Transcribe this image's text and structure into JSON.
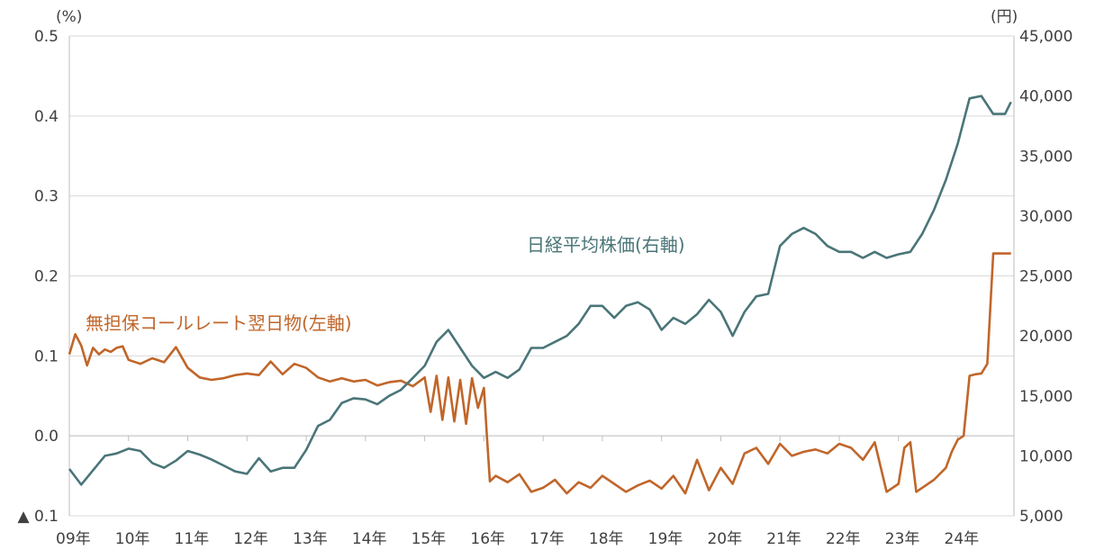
{
  "chart_data": {
    "type": "line",
    "left_axis": {
      "unit": "(%)",
      "ticks": [
        {
          "value": 0.5,
          "label": "0.5"
        },
        {
          "value": 0.4,
          "label": "0.4"
        },
        {
          "value": 0.3,
          "label": "0.3"
        },
        {
          "value": 0.2,
          "label": "0.2"
        },
        {
          "value": 0.1,
          "label": "0.1"
        },
        {
          "value": 0.0,
          "label": "0.0"
        },
        {
          "value": -0.1,
          "label": "▲ 0.1"
        }
      ],
      "ylim": [
        -0.1,
        0.5
      ]
    },
    "right_axis": {
      "unit": "(円)",
      "ticks": [
        {
          "value": 45000,
          "label": "45,000"
        },
        {
          "value": 40000,
          "label": "40,000"
        },
        {
          "value": 35000,
          "label": "35,000"
        },
        {
          "value": 30000,
          "label": "30,000"
        },
        {
          "value": 25000,
          "label": "25,000"
        },
        {
          "value": 20000,
          "label": "20,000"
        },
        {
          "value": 15000,
          "label": "15,000"
        },
        {
          "value": 10000,
          "label": "10,000"
        },
        {
          "value": 5000,
          "label": "5,000"
        }
      ],
      "ylim": [
        5000,
        45000
      ]
    },
    "x_ticks": [
      "09年",
      "10年",
      "11年",
      "12年",
      "13年",
      "14年",
      "15年",
      "16年",
      "17年",
      "18年",
      "19年",
      "20年",
      "21年",
      "22年",
      "23年",
      "24年"
    ],
    "grid": true,
    "series": [
      {
        "name": "無担保コールレート翌日物(左軸)",
        "axis": "left",
        "color": "#C0662A",
        "x": [
          2009.0,
          2009.1,
          2009.2,
          2009.3,
          2009.4,
          2009.5,
          2009.6,
          2009.7,
          2009.8,
          2009.9,
          2010.0,
          2010.2,
          2010.4,
          2010.6,
          2010.8,
          2011.0,
          2011.2,
          2011.4,
          2011.6,
          2011.8,
          2012.0,
          2012.2,
          2012.4,
          2012.6,
          2012.8,
          2013.0,
          2013.2,
          2013.4,
          2013.6,
          2013.8,
          2014.0,
          2014.2,
          2014.4,
          2014.6,
          2014.8,
          2015.0,
          2015.1,
          2015.2,
          2015.3,
          2015.4,
          2015.5,
          2015.6,
          2015.7,
          2015.8,
          2015.9,
          2016.0,
          2016.05,
          2016.1,
          2016.2,
          2016.4,
          2016.6,
          2016.8,
          2017.0,
          2017.2,
          2017.4,
          2017.6,
          2017.8,
          2018.0,
          2018.2,
          2018.4,
          2018.6,
          2018.8,
          2019.0,
          2019.2,
          2019.4,
          2019.6,
          2019.8,
          2020.0,
          2020.2,
          2020.4,
          2020.6,
          2020.8,
          2021.0,
          2021.2,
          2021.4,
          2021.6,
          2021.8,
          2022.0,
          2022.2,
          2022.4,
          2022.6,
          2022.8,
          2023.0,
          2023.1,
          2023.2,
          2023.3,
          2023.4,
          2023.6,
          2023.8,
          2023.9,
          2024.0,
          2024.1,
          2024.2,
          2024.3,
          2024.4,
          2024.5,
          2024.6,
          2024.7,
          2024.8,
          2024.9
        ],
        "values": [
          0.102,
          0.127,
          0.113,
          0.088,
          0.11,
          0.102,
          0.108,
          0.105,
          0.11,
          0.112,
          0.095,
          0.09,
          0.097,
          0.092,
          0.111,
          0.085,
          0.073,
          0.07,
          0.072,
          0.076,
          0.078,
          0.076,
          0.093,
          0.077,
          0.09,
          0.085,
          0.073,
          0.068,
          0.072,
          0.068,
          0.07,
          0.063,
          0.067,
          0.069,
          0.062,
          0.073,
          0.03,
          0.075,
          0.02,
          0.073,
          0.018,
          0.07,
          0.015,
          0.072,
          0.035,
          0.06,
          0.0,
          -0.057,
          -0.05,
          -0.058,
          -0.048,
          -0.07,
          -0.065,
          -0.055,
          -0.072,
          -0.058,
          -0.065,
          -0.05,
          -0.06,
          -0.07,
          -0.062,
          -0.056,
          -0.066,
          -0.05,
          -0.072,
          -0.03,
          -0.068,
          -0.04,
          -0.06,
          -0.022,
          -0.015,
          -0.035,
          -0.01,
          -0.025,
          -0.02,
          -0.017,
          -0.022,
          -0.01,
          -0.015,
          -0.03,
          -0.008,
          -0.07,
          -0.06,
          -0.015,
          -0.008,
          -0.07,
          -0.065,
          -0.055,
          -0.04,
          -0.02,
          -0.005,
          0.0,
          0.075,
          0.077,
          0.078,
          0.09,
          0.228,
          0.228,
          0.228,
          0.228
        ]
      },
      {
        "name": "日経平均株価(右軸)",
        "axis": "right",
        "color": "#4A7578",
        "x": [
          2009.0,
          2009.2,
          2009.4,
          2009.6,
          2009.8,
          2010.0,
          2010.2,
          2010.4,
          2010.6,
          2010.8,
          2011.0,
          2011.2,
          2011.4,
          2011.6,
          2011.8,
          2012.0,
          2012.2,
          2012.4,
          2012.6,
          2012.8,
          2013.0,
          2013.2,
          2013.4,
          2013.6,
          2013.8,
          2014.0,
          2014.2,
          2014.4,
          2014.6,
          2014.8,
          2015.0,
          2015.2,
          2015.4,
          2015.6,
          2015.8,
          2016.0,
          2016.2,
          2016.4,
          2016.6,
          2016.8,
          2017.0,
          2017.2,
          2017.4,
          2017.6,
          2017.8,
          2018.0,
          2018.2,
          2018.4,
          2018.6,
          2018.8,
          2019.0,
          2019.2,
          2019.4,
          2019.6,
          2019.8,
          2020.0,
          2020.2,
          2020.4,
          2020.6,
          2020.8,
          2021.0,
          2021.2,
          2021.4,
          2021.6,
          2021.8,
          2022.0,
          2022.2,
          2022.4,
          2022.6,
          2022.8,
          2023.0,
          2023.2,
          2023.4,
          2023.6,
          2023.8,
          2024.0,
          2024.2,
          2024.4,
          2024.6,
          2024.8,
          2024.9
        ],
        "values": [
          8900,
          7600,
          8800,
          10000,
          10200,
          10600,
          10400,
          9400,
          9000,
          9600,
          10400,
          10100,
          9700,
          9200,
          8700,
          8500,
          9800,
          8700,
          9000,
          9000,
          10500,
          12500,
          13000,
          14400,
          14800,
          14700,
          14300,
          15000,
          15500,
          16500,
          17500,
          19500,
          20500,
          19000,
          17500,
          16500,
          17000,
          16500,
          17200,
          19000,
          19000,
          19500,
          20000,
          21000,
          22500,
          22500,
          21500,
          22500,
          22800,
          22200,
          20500,
          21500,
          21000,
          21800,
          23000,
          22000,
          20000,
          22000,
          23300,
          23500,
          27500,
          28500,
          29000,
          28500,
          27500,
          27000,
          27000,
          26500,
          27000,
          26500,
          26800,
          27000,
          28500,
          30500,
          33000,
          36000,
          39800,
          40000,
          38500,
          38500,
          39500
        ]
      }
    ],
    "annotations": [
      {
        "text": "日経平均株価(右軸)",
        "series": 1
      },
      {
        "text": "無担保コールレート翌日物(左軸)",
        "series": 0
      }
    ]
  }
}
